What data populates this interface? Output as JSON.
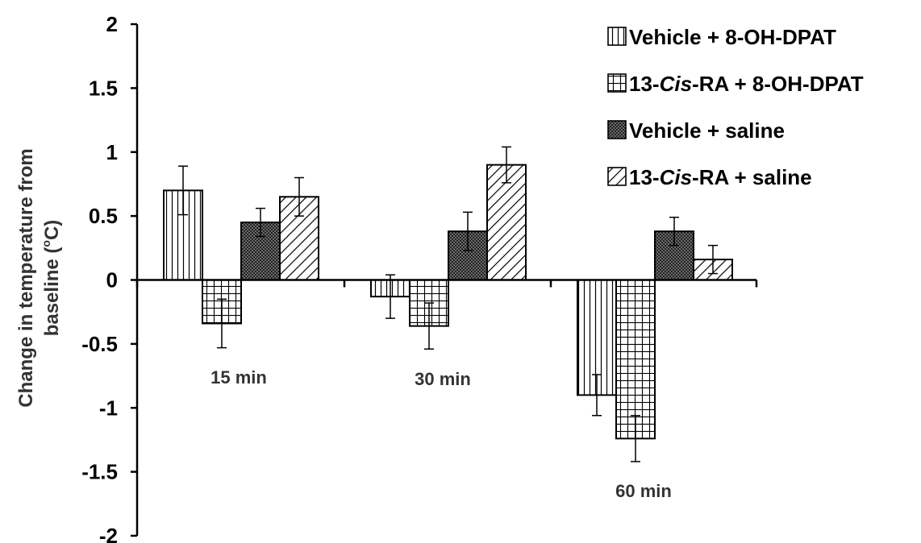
{
  "chart_data": {
    "type": "bar",
    "categories": [
      "15 min",
      "30 min",
      "60 min"
    ],
    "series": [
      {
        "name": "Vehicle + 8-OH-DPAT",
        "values": [
          0.7,
          -0.13,
          -0.9
        ],
        "errors": [
          0.19,
          0.17,
          0.16
        ],
        "pattern": "vertical-lines"
      },
      {
        "name_parts": [
          "13-",
          "Cis",
          "-RA + 8-OH-DPAT"
        ],
        "values": [
          -0.34,
          -0.36,
          -1.24
        ],
        "errors": [
          0.19,
          0.18,
          0.18
        ],
        "pattern": "grid"
      },
      {
        "name": "Vehicle + saline",
        "values": [
          0.45,
          0.38,
          0.38
        ],
        "errors": [
          0.11,
          0.15,
          0.11
        ],
        "pattern": "dark-dots"
      },
      {
        "name_parts": [
          "13-",
          "Cis",
          "-RA + saline"
        ],
        "values": [
          0.65,
          0.9,
          0.16
        ],
        "errors": [
          0.15,
          0.14,
          0.11
        ],
        "pattern": "diagonal-lines"
      }
    ],
    "ylabel_line1": "Change in temperature from",
    "ylabel_line2_pre": "baseline (",
    "ylabel_line2_sup": "o",
    "ylabel_line2_post": "C)",
    "ylim": [
      -2,
      2
    ],
    "yticks": [
      "2",
      "1.5",
      "1",
      "0.5",
      "0",
      "-0.5",
      "-1",
      "-1.5",
      "-2"
    ],
    "grid": false,
    "legend_position": "top-right"
  }
}
